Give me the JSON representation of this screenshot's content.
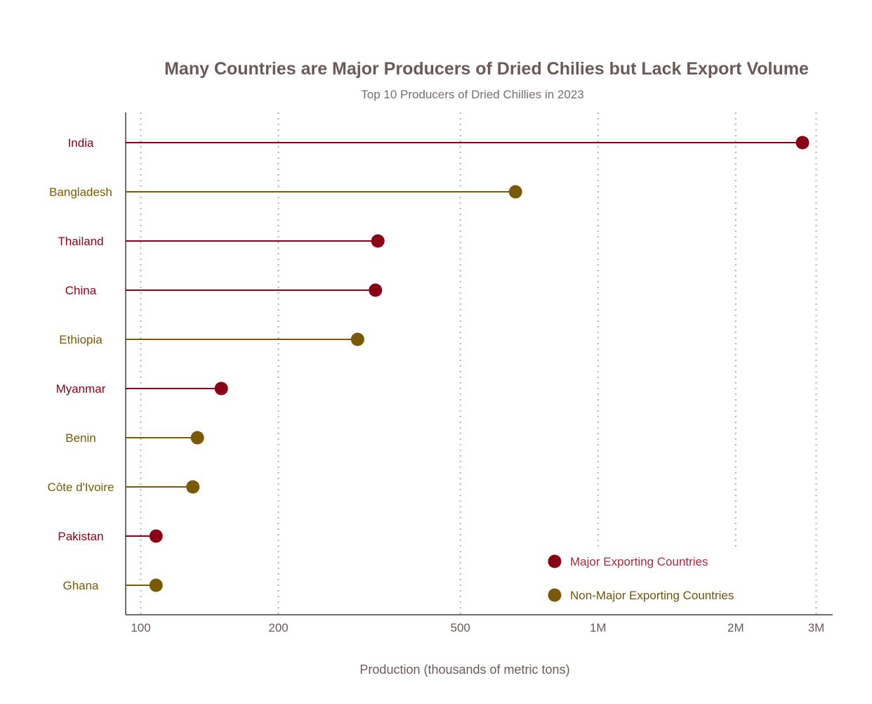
{
  "chart_data": {
    "type": "lollipop",
    "title": "Many Countries are Major Producers of Dried Chilies but Lack Export Volume",
    "subtitle": "Top 10 Producers of Dried Chillies in 2023",
    "xlabel": "Production (thousands of metric tons)",
    "ylabel": "",
    "x_scale": "log",
    "xlim": [
      96,
      3200
    ],
    "x_ticks": [
      {
        "value": 100,
        "label": "100"
      },
      {
        "value": 200,
        "label": "200"
      },
      {
        "value": 500,
        "label": "500"
      },
      {
        "value": 1000,
        "label": "1M"
      },
      {
        "value": 2000,
        "label": "2M"
      },
      {
        "value": 3000,
        "label": "3M"
      }
    ],
    "grid": "vertical dotted",
    "legend_position": "bottom-right",
    "groups": [
      {
        "name": "Major Exporting Countries",
        "color": "#8b0015"
      },
      {
        "name": "Non-Major Exporting Countries",
        "color": "#7a5a06"
      }
    ],
    "points": [
      {
        "country": "India",
        "value": 2800,
        "group": 0
      },
      {
        "country": "Bangladesh",
        "value": 660,
        "group": 1
      },
      {
        "country": "Thailand",
        "value": 330,
        "group": 0
      },
      {
        "country": "China",
        "value": 326,
        "group": 0
      },
      {
        "country": "Ethiopia",
        "value": 298,
        "group": 1
      },
      {
        "country": "Myanmar",
        "value": 150,
        "group": 0
      },
      {
        "country": "Benin",
        "value": 133,
        "group": 1
      },
      {
        "country": "Côte d'Ivoire",
        "value": 130,
        "group": 1
      },
      {
        "country": "Pakistan",
        "value": 108,
        "group": 0
      },
      {
        "country": "Ghana",
        "value": 108,
        "group": 1
      }
    ]
  }
}
